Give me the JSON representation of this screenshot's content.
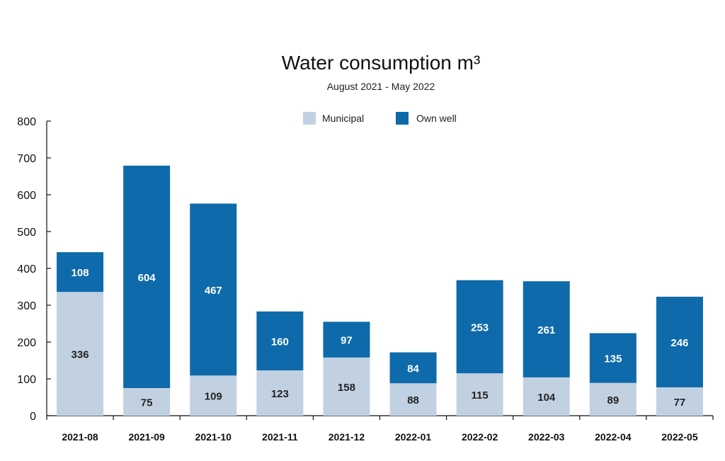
{
  "chart_data": {
    "type": "bar",
    "stacked": true,
    "title": "Water consumption m³",
    "subtitle": "August 2021 - May 2022",
    "categories": [
      "2021-08",
      "2021-09",
      "2021-10",
      "2021-11",
      "2021-12",
      "2022-01",
      "2022-02",
      "2022-03",
      "2022-04",
      "2022-05"
    ],
    "series": [
      {
        "name": "Municipal",
        "color": "#c2d1e2",
        "values": [
          336,
          75,
          109,
          123,
          158,
          88,
          115,
          104,
          89,
          77
        ]
      },
      {
        "name": "Own well",
        "color": "#0e6aaa",
        "values": [
          108,
          604,
          467,
          160,
          97,
          84,
          253,
          261,
          135,
          246
        ]
      }
    ],
    "ylim": [
      0,
      800
    ],
    "yticks": [
      0,
      100,
      200,
      300,
      400,
      500,
      600,
      700,
      800
    ],
    "xlabel": "",
    "ylabel": "",
    "legend_position": "top-center",
    "grid": false
  }
}
